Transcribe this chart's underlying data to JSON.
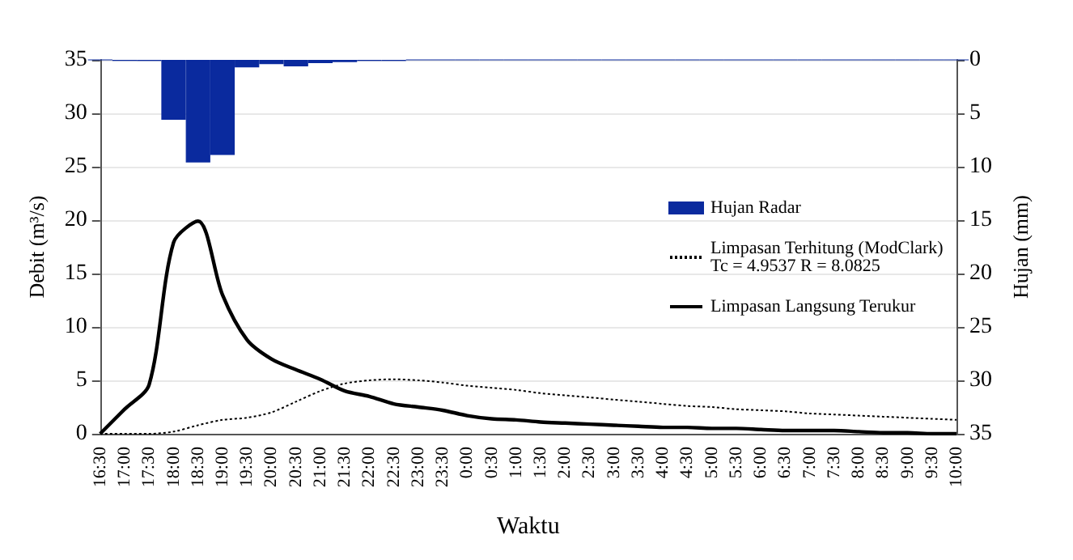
{
  "chart_data": {
    "type": "line",
    "xlabel": "Waktu",
    "ylabel": "Debit (m³/s)",
    "y2label": "Hujan (mm)",
    "categories": [
      "16:30",
      "17:00",
      "17:30",
      "18:00",
      "18:30",
      "19:00",
      "19:30",
      "20:00",
      "20:30",
      "21:00",
      "21:30",
      "22:00",
      "22:30",
      "23:00",
      "23:30",
      "0:00",
      "0:30",
      "1:00",
      "1:30",
      "2:00",
      "2:30",
      "3:00",
      "3:30",
      "4:00",
      "4:30",
      "5:00",
      "5:30",
      "6:00",
      "6:30",
      "7:00",
      "7:30",
      "8:00",
      "8:30",
      "9:00",
      "9:30",
      "10:00"
    ],
    "series": [
      {
        "name": "Hujan Radar",
        "type": "bar",
        "axis": "y2",
        "color": "#0a2a9e",
        "values": [
          0,
          0.1,
          0.1,
          5.6,
          9.6,
          8.9,
          0.7,
          0.4,
          0.6,
          0.3,
          0.2,
          0.1,
          0.1,
          0,
          0,
          0,
          0,
          0,
          0,
          0,
          0,
          0,
          0,
          0,
          0,
          0,
          0,
          0,
          0,
          0,
          0,
          0,
          0,
          0,
          0,
          0
        ]
      },
      {
        "name": "Limpasan Terhitung (ModClark)\nTc = 4.9537 R = 8.0825",
        "line_style": "dotted",
        "color": "#000000",
        "values": [
          0,
          0,
          0,
          0.2,
          0.8,
          1.3,
          1.5,
          2.0,
          3.0,
          4.0,
          4.7,
          5.0,
          5.1,
          5.0,
          4.8,
          4.5,
          4.3,
          4.1,
          3.8,
          3.6,
          3.4,
          3.2,
          3.0,
          2.8,
          2.6,
          2.5,
          2.3,
          2.2,
          2.1,
          1.9,
          1.8,
          1.7,
          1.6,
          1.5,
          1.4,
          1.3
        ]
      },
      {
        "name": "Limpasan Langsung Terukur",
        "line_style": "solid",
        "color": "#000000",
        "values": [
          0,
          2.3,
          4.6,
          17.9,
          19.9,
          13.0,
          8.8,
          7.0,
          6.0,
          5.1,
          4.0,
          3.5,
          2.8,
          2.5,
          2.2,
          1.7,
          1.4,
          1.3,
          1.1,
          1.0,
          0.9,
          0.8,
          0.7,
          0.6,
          0.6,
          0.5,
          0.5,
          0.4,
          0.3,
          0.3,
          0.3,
          0.2,
          0.1,
          0.1,
          0,
          0
        ]
      }
    ],
    "ylim": [
      0,
      35
    ],
    "yticks": [
      0,
      5,
      10,
      15,
      20,
      25,
      30,
      35
    ],
    "y2lim": [
      35,
      0
    ],
    "y2ticks": [
      0,
      5,
      10,
      15,
      20,
      25,
      30,
      35
    ],
    "grid": "y",
    "legend": "right",
    "marker": "none"
  }
}
